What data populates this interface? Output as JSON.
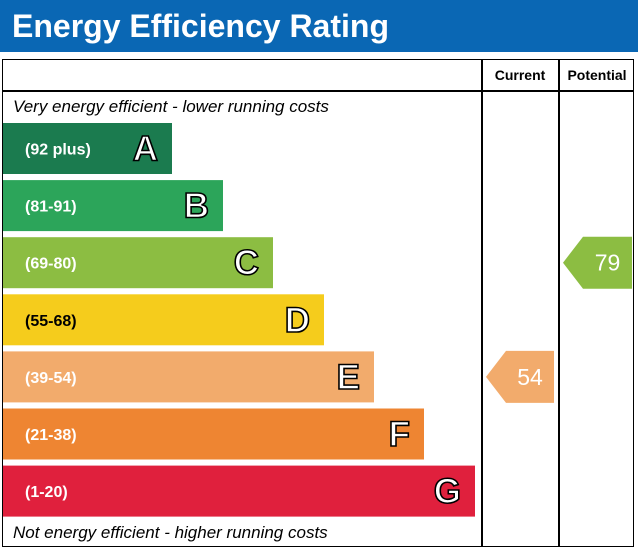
{
  "header": {
    "title": "Energy Efficiency Rating"
  },
  "columns": {
    "current": "Current",
    "potential": "Potential"
  },
  "notes": {
    "top": "Very energy efficient - lower running costs",
    "bottom": "Not energy efficient - higher running costs"
  },
  "chart_data": {
    "type": "bar",
    "title": "Energy Efficiency Rating",
    "bands": [
      {
        "letter": "A",
        "range": "(92 plus)",
        "color": "#1b7b4f"
      },
      {
        "letter": "B",
        "range": "(81-91)",
        "color": "#2ca55a"
      },
      {
        "letter": "C",
        "range": "(69-80)",
        "color": "#8cbd42"
      },
      {
        "letter": "D",
        "range": "(55-68)",
        "color": "#f5cc1c"
      },
      {
        "letter": "E",
        "range": "(39-54)",
        "color": "#f2ab6c"
      },
      {
        "letter": "F",
        "range": "(21-38)",
        "color": "#ee8532"
      },
      {
        "letter": "G",
        "range": "(1-20)",
        "color": "#e0203d"
      }
    ],
    "current": {
      "value": 54,
      "band": "E",
      "color": "#f2ab6c"
    },
    "potential": {
      "value": 79,
      "band": "C",
      "color": "#8cbd42"
    }
  }
}
